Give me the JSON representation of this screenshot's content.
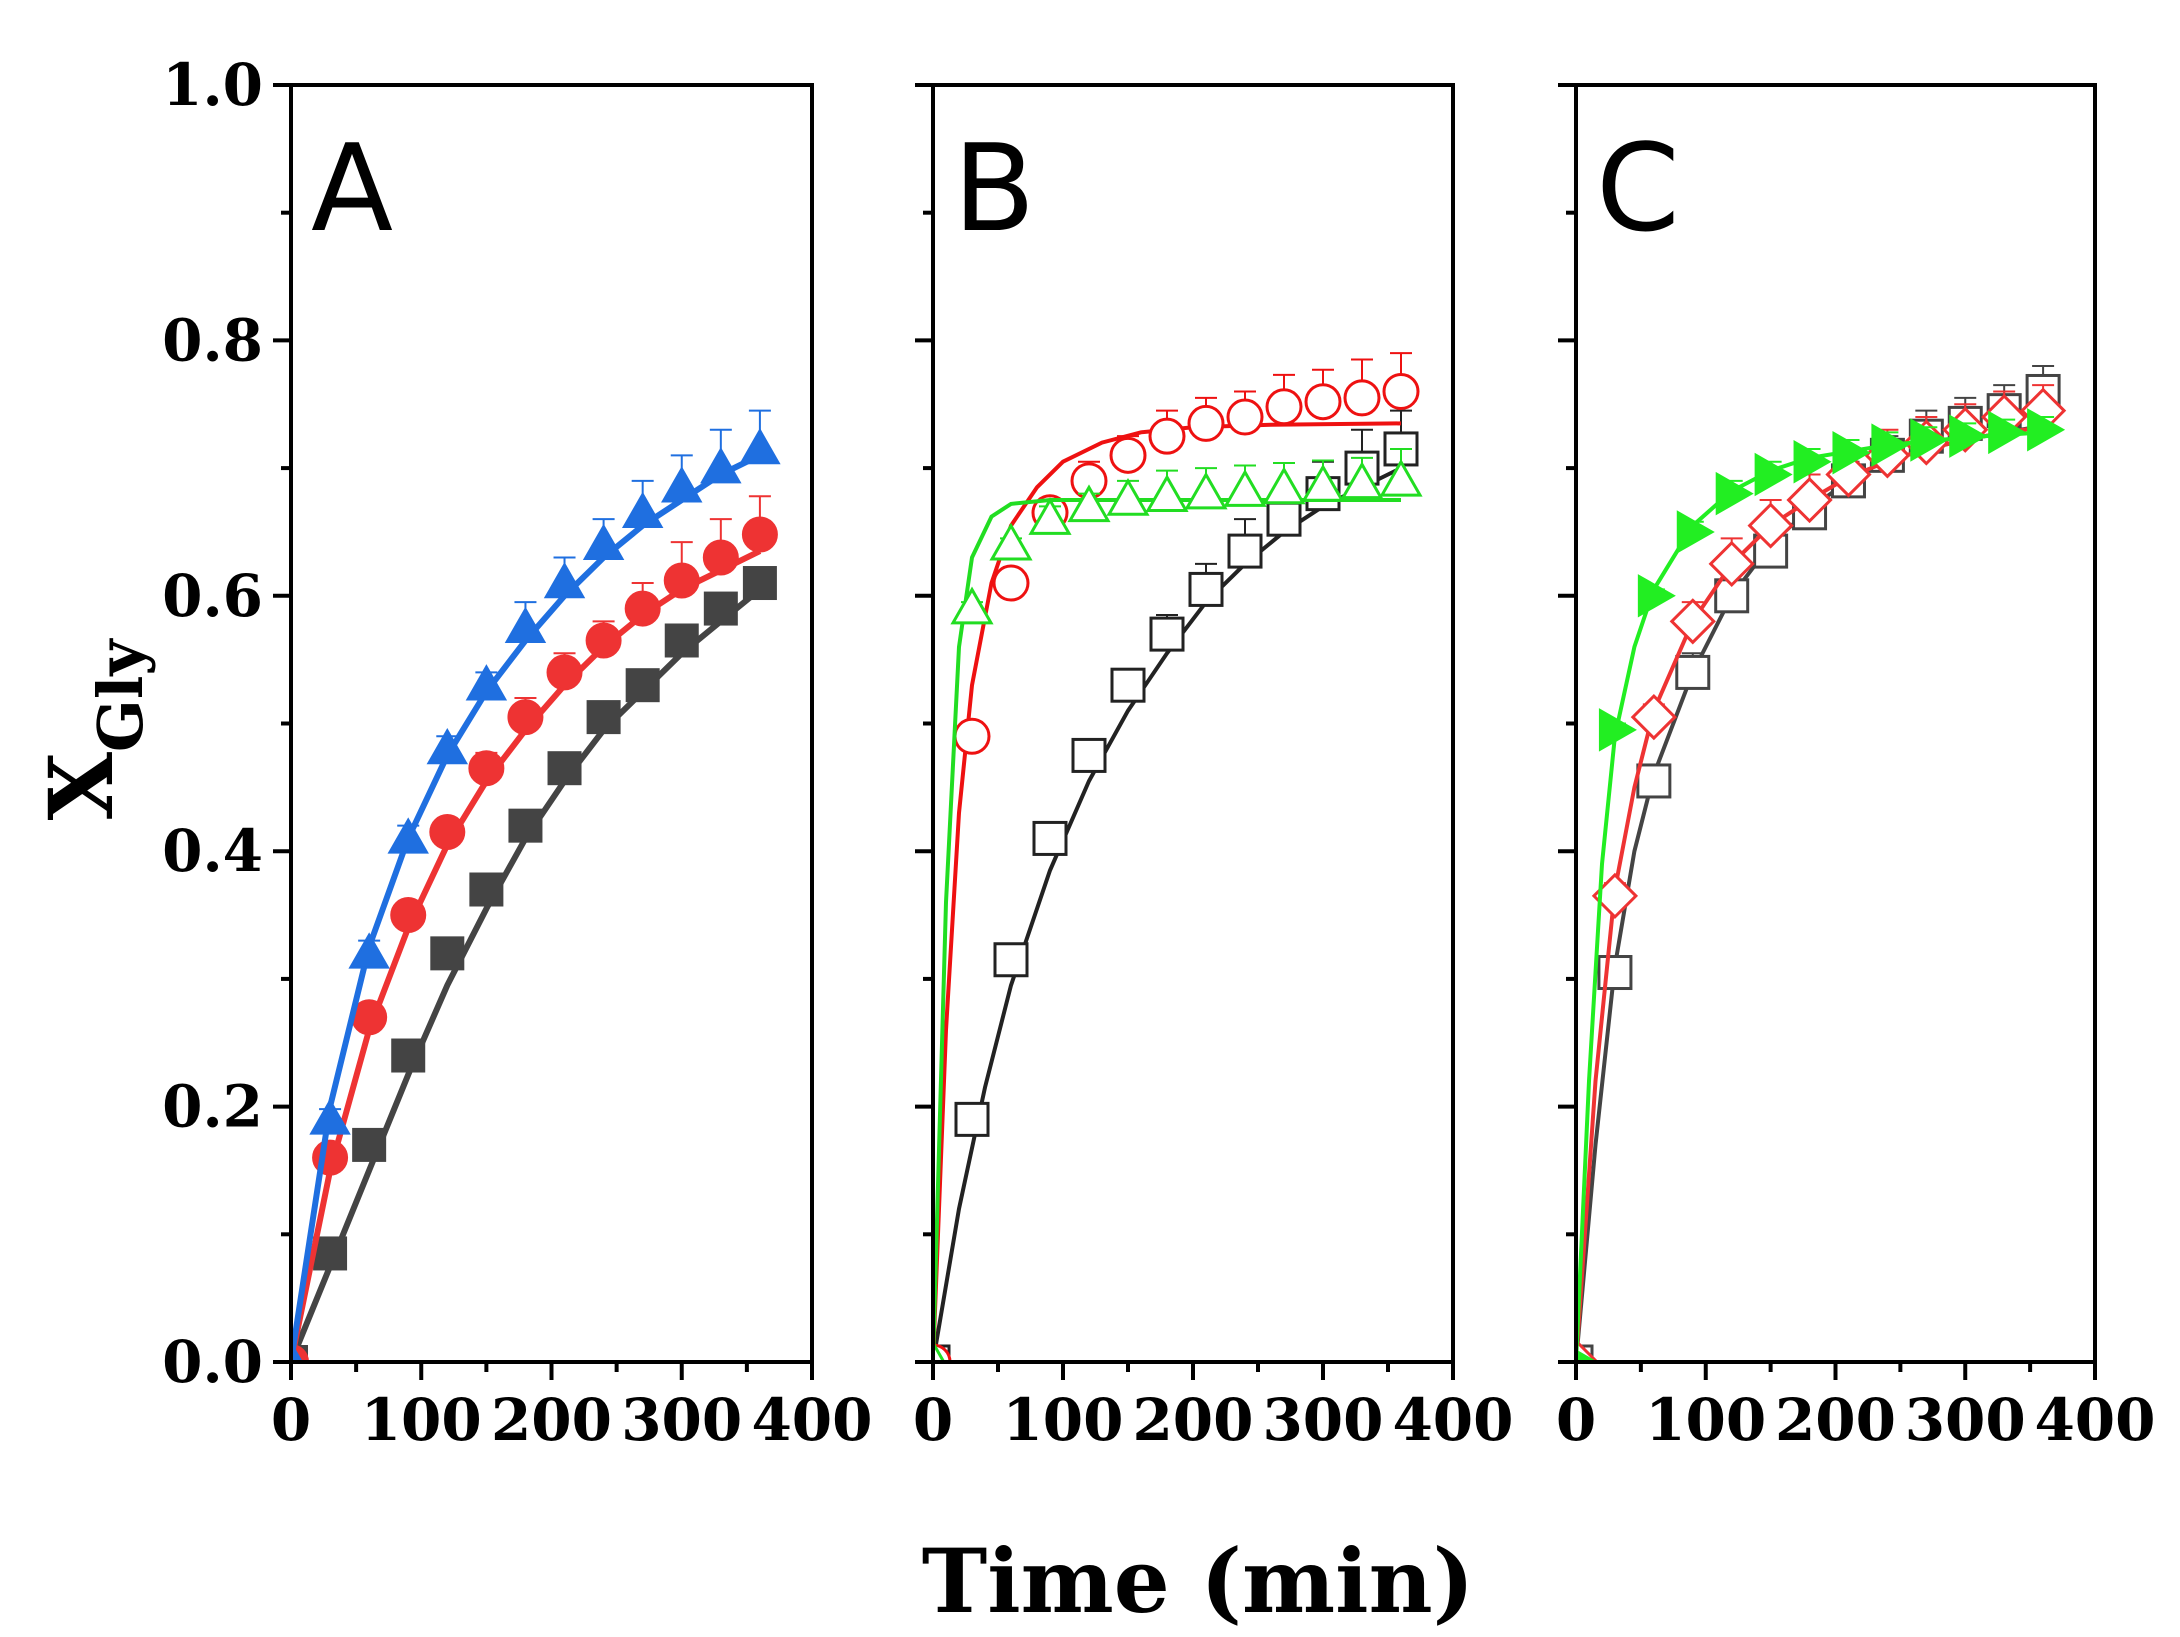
{
  "figure": {
    "xlabel": "Time (min)",
    "ylabel_main": "X",
    "ylabel_sub": "Gly"
  },
  "chart_data": [
    {
      "type": "scatter",
      "panel": "A",
      "xlim": [
        0,
        400
      ],
      "ylim": [
        0,
        1.0
      ],
      "xticks": [
        "0",
        "100",
        "200",
        "300",
        "400"
      ],
      "yticks": [
        "0.0",
        "0.2",
        "0.4",
        "0.6",
        "0.8",
        "1.0"
      ],
      "grid": false,
      "series": [
        {
          "color": "#444444",
          "marker": "square",
          "filled": true,
          "x": [
            0,
            30,
            60,
            90,
            120,
            150,
            180,
            210,
            240,
            270,
            300,
            330,
            360
          ],
          "y": [
            0.0,
            0.085,
            0.17,
            0.24,
            0.32,
            0.37,
            0.42,
            0.465,
            0.505,
            0.53,
            0.565,
            0.59,
            0.61
          ],
          "err": [
            0,
            0.005,
            0.005,
            0.005,
            0.005,
            0.005,
            0.005,
            0.005,
            0.005,
            0.005,
            0.005,
            0.005,
            0.005
          ],
          "fit": [
            [
              0,
              0.0
            ],
            [
              30,
              0.075
            ],
            [
              60,
              0.15
            ],
            [
              90,
              0.225
            ],
            [
              120,
              0.295
            ],
            [
              150,
              0.355
            ],
            [
              180,
              0.41
            ],
            [
              210,
              0.455
            ],
            [
              240,
              0.495
            ],
            [
              270,
              0.525
            ],
            [
              300,
              0.555
            ],
            [
              330,
              0.58
            ],
            [
              360,
              0.605
            ]
          ]
        },
        {
          "color": "#ee3333",
          "marker": "circle",
          "filled": true,
          "x": [
            0,
            30,
            60,
            90,
            120,
            150,
            180,
            210,
            240,
            270,
            300,
            330,
            360
          ],
          "y": [
            0.0,
            0.16,
            0.27,
            0.35,
            0.415,
            0.465,
            0.505,
            0.54,
            0.565,
            0.59,
            0.612,
            0.63,
            0.648
          ],
          "err": [
            0,
            0.008,
            0.008,
            0.01,
            0.01,
            0.012,
            0.015,
            0.015,
            0.015,
            0.02,
            0.03,
            0.03,
            0.03
          ],
          "fit": [
            [
              0,
              0.0
            ],
            [
              30,
              0.15
            ],
            [
              60,
              0.26
            ],
            [
              90,
              0.34
            ],
            [
              120,
              0.405
            ],
            [
              150,
              0.455
            ],
            [
              180,
              0.495
            ],
            [
              210,
              0.53
            ],
            [
              240,
              0.56
            ],
            [
              270,
              0.585
            ],
            [
              300,
              0.605
            ],
            [
              330,
              0.62
            ],
            [
              360,
              0.635
            ]
          ]
        },
        {
          "color": "#1f6fe0",
          "marker": "triangle-up",
          "filled": true,
          "x": [
            0,
            30,
            60,
            90,
            120,
            150,
            180,
            210,
            240,
            270,
            300,
            330,
            360
          ],
          "y": [
            0.0,
            0.19,
            0.32,
            0.41,
            0.48,
            0.53,
            0.575,
            0.61,
            0.64,
            0.665,
            0.685,
            0.7,
            0.715
          ],
          "err": [
            0,
            0.008,
            0.01,
            0.01,
            0.01,
            0.01,
            0.02,
            0.02,
            0.02,
            0.025,
            0.025,
            0.03,
            0.03
          ],
          "fit": [
            [
              0,
              0.0
            ],
            [
              30,
              0.2
            ],
            [
              60,
              0.325
            ],
            [
              90,
              0.41
            ],
            [
              120,
              0.475
            ],
            [
              150,
              0.525
            ],
            [
              180,
              0.565
            ],
            [
              210,
              0.6
            ],
            [
              240,
              0.63
            ],
            [
              270,
              0.655
            ],
            [
              300,
              0.675
            ],
            [
              330,
              0.695
            ],
            [
              360,
              0.71
            ]
          ]
        }
      ]
    },
    {
      "type": "scatter",
      "panel": "B",
      "xlim": [
        0,
        400
      ],
      "ylim": [
        0,
        1.0
      ],
      "xticks": [
        "0",
        "100",
        "200",
        "300",
        "400"
      ],
      "yticks": [],
      "grid": false,
      "series": [
        {
          "color": "#222222",
          "marker": "square",
          "filled": false,
          "x": [
            0,
            30,
            60,
            90,
            120,
            150,
            180,
            210,
            240,
            270,
            300,
            330,
            360
          ],
          "y": [
            0.0,
            0.19,
            0.315,
            0.41,
            0.475,
            0.53,
            0.57,
            0.605,
            0.635,
            0.66,
            0.68,
            0.7,
            0.715
          ],
          "err": [
            0,
            0.005,
            0.005,
            0.005,
            0.005,
            0.008,
            0.015,
            0.02,
            0.025,
            0.025,
            0.025,
            0.03,
            0.03
          ],
          "fit": [
            [
              0,
              0.0
            ],
            [
              20,
              0.12
            ],
            [
              40,
              0.215
            ],
            [
              60,
              0.295
            ],
            [
              90,
              0.385
            ],
            [
              120,
              0.455
            ],
            [
              150,
              0.51
            ],
            [
              180,
              0.555
            ],
            [
              210,
              0.595
            ],
            [
              240,
              0.625
            ],
            [
              270,
              0.65
            ],
            [
              300,
              0.67
            ],
            [
              330,
              0.685
            ],
            [
              360,
              0.7
            ]
          ]
        },
        {
          "color": "#ee1111",
          "marker": "circle",
          "filled": false,
          "x": [
            0,
            30,
            60,
            90,
            120,
            150,
            180,
            210,
            240,
            270,
            300,
            330,
            360
          ],
          "y": [
            0.0,
            0.49,
            0.61,
            0.665,
            0.69,
            0.71,
            0.725,
            0.735,
            0.74,
            0.748,
            0.752,
            0.755,
            0.76
          ],
          "err": [
            0,
            0.005,
            0.005,
            0.01,
            0.015,
            0.015,
            0.02,
            0.02,
            0.02,
            0.025,
            0.025,
            0.03,
            0.03
          ],
          "fit": [
            [
              0,
              0.0
            ],
            [
              10,
              0.26
            ],
            [
              20,
              0.43
            ],
            [
              30,
              0.53
            ],
            [
              45,
              0.61
            ],
            [
              60,
              0.655
            ],
            [
              80,
              0.685
            ],
            [
              100,
              0.705
            ],
            [
              130,
              0.72
            ],
            [
              160,
              0.728
            ],
            [
              200,
              0.732
            ],
            [
              260,
              0.734
            ],
            [
              360,
              0.735
            ]
          ]
        },
        {
          "color": "#22dd22",
          "marker": "triangle-up",
          "filled": false,
          "x": [
            0,
            30,
            60,
            90,
            120,
            150,
            180,
            210,
            240,
            270,
            300,
            330,
            360
          ],
          "y": [
            0.0,
            0.59,
            0.64,
            0.66,
            0.67,
            0.675,
            0.678,
            0.68,
            0.682,
            0.684,
            0.686,
            0.688,
            0.69
          ],
          "err": [
            0,
            0.005,
            0.005,
            0.01,
            0.01,
            0.015,
            0.02,
            0.02,
            0.02,
            0.02,
            0.02,
            0.02,
            0.025
          ],
          "fit": [
            [
              0,
              0.0
            ],
            [
              10,
              0.36
            ],
            [
              20,
              0.56
            ],
            [
              30,
              0.63
            ],
            [
              45,
              0.662
            ],
            [
              60,
              0.672
            ],
            [
              90,
              0.675
            ],
            [
              360,
              0.675
            ]
          ]
        }
      ]
    },
    {
      "type": "scatter",
      "panel": "C",
      "xlim": [
        0,
        400
      ],
      "ylim": [
        0,
        1.0
      ],
      "xticks": [
        "0",
        "100",
        "200",
        "300",
        "400"
      ],
      "yticks": [],
      "grid": false,
      "series": [
        {
          "color": "#444444",
          "marker": "square",
          "filled": false,
          "x": [
            0,
            30,
            60,
            90,
            120,
            150,
            180,
            210,
            240,
            270,
            300,
            330,
            360
          ],
          "y": [
            0.0,
            0.305,
            0.455,
            0.54,
            0.6,
            0.635,
            0.665,
            0.69,
            0.71,
            0.725,
            0.735,
            0.745,
            0.76
          ],
          "err": [
            0,
            0.008,
            0.01,
            0.015,
            0.02,
            0.02,
            0.015,
            0.015,
            0.015,
            0.02,
            0.02,
            0.02,
            0.02
          ],
          "fit": [
            [
              0,
              0.0
            ],
            [
              15,
              0.17
            ],
            [
              30,
              0.31
            ],
            [
              45,
              0.4
            ],
            [
              60,
              0.46
            ],
            [
              90,
              0.54
            ],
            [
              120,
              0.6
            ],
            [
              150,
              0.64
            ],
            [
              180,
              0.668
            ],
            [
              210,
              0.69
            ],
            [
              240,
              0.705
            ],
            [
              270,
              0.715
            ],
            [
              300,
              0.722
            ],
            [
              330,
              0.728
            ],
            [
              360,
              0.733
            ]
          ]
        },
        {
          "color": "#ee3333",
          "marker": "diamond",
          "filled": false,
          "x": [
            0,
            30,
            60,
            90,
            120,
            150,
            180,
            210,
            240,
            270,
            300,
            330,
            360
          ],
          "y": [
            0.0,
            0.365,
            0.505,
            0.58,
            0.625,
            0.655,
            0.675,
            0.695,
            0.71,
            0.72,
            0.73,
            0.74,
            0.745
          ],
          "err": [
            0,
            0.01,
            0.01,
            0.015,
            0.02,
            0.02,
            0.02,
            0.02,
            0.02,
            0.02,
            0.02,
            0.02,
            0.02
          ],
          "fit": [
            [
              0,
              0.0
            ],
            [
              15,
              0.22
            ],
            [
              30,
              0.37
            ],
            [
              45,
              0.45
            ],
            [
              60,
              0.51
            ],
            [
              90,
              0.58
            ],
            [
              120,
              0.625
            ],
            [
              150,
              0.655
            ],
            [
              180,
              0.675
            ],
            [
              210,
              0.693
            ],
            [
              240,
              0.705
            ],
            [
              270,
              0.715
            ],
            [
              300,
              0.722
            ],
            [
              330,
              0.728
            ],
            [
              360,
              0.732
            ]
          ]
        },
        {
          "color": "#22ee22",
          "marker": "triangle-right",
          "filled": true,
          "x": [
            0,
            30,
            60,
            90,
            120,
            150,
            180,
            210,
            240,
            270,
            300,
            330,
            360
          ],
          "y": [
            0.0,
            0.495,
            0.6,
            0.65,
            0.68,
            0.695,
            0.705,
            0.712,
            0.718,
            0.722,
            0.725,
            0.728,
            0.73
          ],
          "err": [
            0,
            0.005,
            0.005,
            0.008,
            0.01,
            0.01,
            0.01,
            0.01,
            0.01,
            0.01,
            0.01,
            0.01,
            0.01
          ],
          "fit": [
            [
              0,
              0.0
            ],
            [
              10,
              0.22
            ],
            [
              20,
              0.39
            ],
            [
              30,
              0.49
            ],
            [
              45,
              0.56
            ],
            [
              60,
              0.605
            ],
            [
              90,
              0.655
            ],
            [
              120,
              0.682
            ],
            [
              150,
              0.698
            ],
            [
              180,
              0.708
            ],
            [
              240,
              0.718
            ],
            [
              300,
              0.724
            ],
            [
              360,
              0.728
            ]
          ]
        }
      ]
    }
  ]
}
